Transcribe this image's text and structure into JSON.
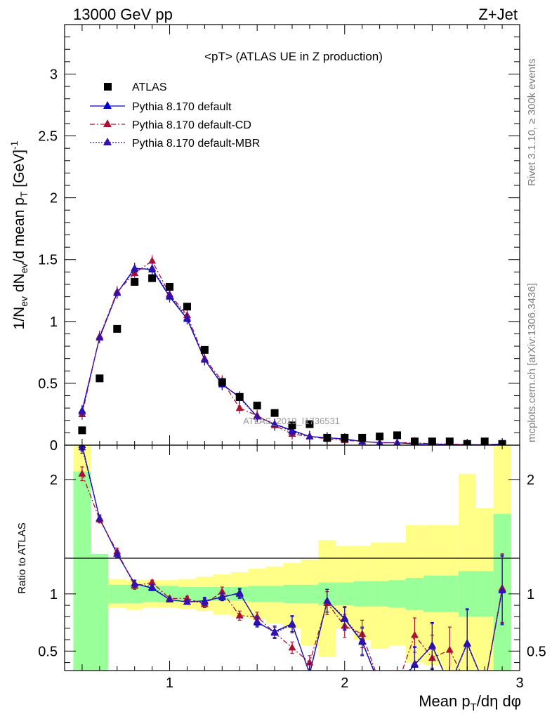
{
  "header": {
    "left": "13000 GeV pp",
    "right": "Z+Jet"
  },
  "side_labels": {
    "rivet": "Rivet 3.1.10, ≥ 300k events",
    "mcplots": "mcplots.cern.ch [arXiv:1306.3436]"
  },
  "watermark": "ATLAS_2019_I1736531",
  "colors": {
    "atlas": "#000000",
    "default": "#0000cc",
    "cd": "#aa1133",
    "mbr": "#3311aa",
    "band_inner": "#99ff99",
    "band_outer": "#ffff88"
  },
  "chart_data": [
    {
      "type": "line",
      "title": "<pT> (ATLAS UE in Z production)",
      "ylabel": "1/N_ev dN_ev/d mean p_T [GeV]^-1",
      "xlim": [
        0.4,
        3.0
      ],
      "ylim": [
        0,
        3.4
      ],
      "y_ticks": [
        0,
        0.5,
        1,
        1.5,
        2,
        2.5,
        3
      ],
      "y_tick_labels": [
        "0",
        "0.5",
        "1",
        "1.5",
        "2",
        "2.5",
        "3"
      ],
      "legend_position": "top-left",
      "x": [
        0.5,
        0.6,
        0.7,
        0.8,
        0.9,
        1.0,
        1.1,
        1.2,
        1.3,
        1.4,
        1.5,
        1.6,
        1.7,
        1.8,
        1.9,
        2.0,
        2.1,
        2.2,
        2.3,
        2.4,
        2.5,
        2.6,
        2.7,
        2.8,
        2.9
      ],
      "series": [
        {
          "name": "ATLAS",
          "style": "markers",
          "values": [
            0.12,
            0.54,
            0.94,
            1.32,
            1.35,
            1.28,
            1.12,
            0.77,
            0.51,
            0.39,
            0.32,
            0.26,
            0.16,
            0.17,
            0.06,
            0.06,
            0.06,
            0.07,
            0.08,
            0.03,
            0.03,
            0.03,
            0.01,
            0.03,
            0.01
          ]
        },
        {
          "name": "Pythia 8.170 default",
          "style": "solid",
          "values": [
            0.28,
            0.87,
            1.23,
            1.43,
            1.42,
            1.2,
            1.02,
            0.69,
            0.49,
            0.39,
            0.23,
            0.17,
            0.12,
            0.07,
            0.06,
            0.05,
            0.03,
            0.02,
            0.02,
            0.01,
            0.01,
            0.005,
            0.005,
            0.003,
            0.01
          ]
        },
        {
          "name": "Pythia 8.170 default-CD",
          "style": "dashdot",
          "values": [
            0.25,
            0.88,
            1.24,
            1.39,
            1.49,
            1.22,
            1.05,
            0.7,
            0.52,
            0.3,
            0.24,
            0.16,
            0.09,
            0.07,
            0.05,
            0.04,
            0.03,
            0.02,
            0.02,
            0.02,
            0.01,
            0.01,
            0.005,
            0.003,
            0.01
          ]
        },
        {
          "name": "Pythia 8.170 default-MBR",
          "style": "dotted",
          "values": [
            0.27,
            0.87,
            1.23,
            1.42,
            1.43,
            1.21,
            1.03,
            0.69,
            0.5,
            0.38,
            0.23,
            0.17,
            0.11,
            0.07,
            0.06,
            0.05,
            0.03,
            0.02,
            0.02,
            0.01,
            0.01,
            0.005,
            0.005,
            0.003,
            0.01
          ]
        }
      ]
    },
    {
      "type": "line",
      "ylabel": "Ratio to ATLAS",
      "xlabel": "Mean p_T/dη dφ",
      "xlim": [
        0.4,
        3.0
      ],
      "ylim": [
        0.33,
        2.3
      ],
      "x_ticks": [
        1,
        2,
        3
      ],
      "x_tick_labels": [
        "1",
        "2",
        "3"
      ],
      "y_ticks": [
        0.5,
        1,
        2
      ],
      "y_tick_labels": [
        "0.5",
        "1",
        "2"
      ],
      "reference_line": 1,
      "bands": {
        "edges": [
          0.45,
          0.55,
          0.65,
          0.75,
          0.85,
          0.95,
          1.05,
          1.15,
          1.25,
          1.35,
          1.45,
          1.55,
          1.65,
          1.75,
          1.85,
          1.95,
          2.05,
          2.15,
          2.25,
          2.35,
          2.45,
          2.55,
          2.65,
          2.75,
          2.85,
          2.95
        ],
        "inner_lo": [
          0.33,
          0.33,
          0.92,
          0.92,
          0.93,
          0.93,
          0.94,
          0.94,
          0.94,
          0.94,
          0.93,
          0.93,
          0.92,
          0.92,
          0.9,
          0.9,
          0.89,
          0.89,
          0.88,
          0.86,
          0.84,
          0.84,
          0.8,
          0.8,
          0.33
        ],
        "inner_hi": [
          2.07,
          1.35,
          1.08,
          1.08,
          1.07,
          1.07,
          1.06,
          1.06,
          1.06,
          1.06,
          1.07,
          1.07,
          1.08,
          1.08,
          1.1,
          1.1,
          1.11,
          1.11,
          1.12,
          1.14,
          1.16,
          1.16,
          1.2,
          1.2,
          1.7
        ],
        "outer_lo": [
          0.33,
          0.8,
          0.88,
          0.86,
          0.88,
          0.88,
          0.87,
          0.85,
          0.82,
          0.8,
          0.78,
          0.74,
          0.7,
          0.55,
          0.45,
          0.7,
          0.6,
          0.52,
          0.55,
          0.4,
          0.38,
          0.33,
          0.33,
          0.33,
          0.33
        ],
        "outer_hi": [
          2.3,
          1.3,
          1.13,
          1.12,
          1.12,
          1.12,
          1.13,
          1.15,
          1.17,
          1.19,
          1.22,
          1.24,
          1.27,
          1.3,
          1.47,
          1.42,
          1.42,
          1.45,
          1.45,
          1.6,
          1.6,
          1.6,
          2.05,
          1.75,
          2.3
        ]
      },
      "x": [
        0.5,
        0.6,
        0.7,
        0.8,
        0.9,
        1.0,
        1.1,
        1.2,
        1.3,
        1.4,
        1.5,
        1.6,
        1.7,
        1.8,
        1.9,
        2.0,
        2.1,
        2.2,
        2.3,
        2.4,
        2.5,
        2.6,
        2.7,
        2.8,
        2.9
      ],
      "series": [
        {
          "name": "Pythia 8.170 default",
          "style": "solid",
          "values": [
            2.3,
            1.66,
            1.35,
            1.09,
            1.05,
            0.95,
            0.93,
            0.94,
            0.97,
            1.01,
            0.75,
            0.67,
            0.74,
            0.3,
            0.94,
            0.78,
            0.58,
            0.2,
            0.2,
            0.38,
            0.55,
            0.2,
            0.57,
            0.2,
            1.04
          ],
          "errors": [
            0.05,
            0.03,
            0.03,
            0.03,
            0.02,
            0.02,
            0.02,
            0.03,
            0.03,
            0.04,
            0.04,
            0.05,
            0.07,
            0.08,
            0.1,
            0.1,
            0.12,
            0.0,
            0.0,
            0.15,
            0.2,
            0.0,
            0.3,
            0.0,
            0.3
          ]
        },
        {
          "name": "Pythia 8.170 default-CD",
          "style": "dashdot",
          "values": [
            2.05,
            1.65,
            1.37,
            1.07,
            1.1,
            0.96,
            0.96,
            0.91,
            1.02,
            0.81,
            0.8,
            0.66,
            0.53,
            0.4,
            0.92,
            0.72,
            0.65,
            0.22,
            0.2,
            0.64,
            0.44,
            0.51,
            0.2,
            0.2,
            1.05
          ],
          "errors": [
            0.06,
            0.03,
            0.03,
            0.03,
            0.02,
            0.02,
            0.02,
            0.03,
            0.04,
            0.04,
            0.04,
            0.05,
            0.05,
            0.06,
            0.1,
            0.1,
            0.12,
            0.0,
            0.0,
            0.15,
            0.2,
            0.2,
            0.0,
            0.0,
            0.3
          ]
        },
        {
          "name": "Pythia 8.170 default-MBR",
          "style": "dotted",
          "values": [
            2.28,
            1.66,
            1.35,
            1.09,
            1.06,
            0.95,
            0.93,
            0.93,
            0.98,
            1.0,
            0.76,
            0.66,
            0.73,
            0.31,
            0.94,
            0.79,
            0.59,
            0.21,
            0.2,
            0.39,
            0.54,
            0.2,
            0.56,
            0.2,
            1.03
          ],
          "errors": [
            0.05,
            0.03,
            0.03,
            0.03,
            0.02,
            0.02,
            0.02,
            0.03,
            0.03,
            0.04,
            0.04,
            0.05,
            0.07,
            0.08,
            0.1,
            0.1,
            0.12,
            0.0,
            0.0,
            0.15,
            0.2,
            0.0,
            0.3,
            0.0,
            0.3
          ]
        }
      ]
    }
  ]
}
